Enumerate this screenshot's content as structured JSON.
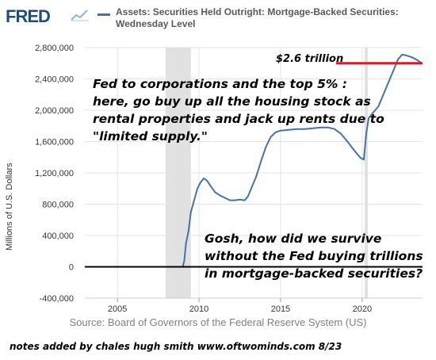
{
  "header": {
    "logo_text": "FRED",
    "series_title_line1": "Assets: Securities Held Outright: Mortgage-Backed Securities:",
    "series_title_line2": "Wednesday Level",
    "accent_color": "#4572a7"
  },
  "chart_data": {
    "type": "line",
    "title": "Assets: Securities Held Outright: Mortgage-Backed Securities: Wednesday Level",
    "ylabel": "Millions of U.S. Dollars",
    "xlabel": "",
    "xlim": [
      2003.0,
      2023.7
    ],
    "ylim": [
      -400000,
      2800000
    ],
    "x_ticks": [
      2005,
      2010,
      2015,
      2020
    ],
    "x_tick_labels": [
      "2005",
      "2010",
      "2015",
      "2020"
    ],
    "y_ticks": [
      -400000,
      0,
      400000,
      800000,
      1200000,
      1600000,
      2000000,
      2400000,
      2800000
    ],
    "y_tick_labels": [
      "-400,000",
      "0",
      "400,000",
      "800,000",
      "1,200,000",
      "1,600,000",
      "2,000,000",
      "2,400,000",
      "2,800,000"
    ],
    "grid": true,
    "recessions": [
      [
        2007.95,
        2009.5
      ],
      [
        2020.15,
        2020.35
      ]
    ],
    "series": [
      {
        "name": "Assets: Securities Held Outright: Mortgage-Backed Securities: Wednesday Level",
        "color": "#4572a7",
        "x": [
          2009.0,
          2009.1,
          2009.2,
          2009.35,
          2009.5,
          2009.7,
          2009.9,
          2010.1,
          2010.3,
          2010.5,
          2010.75,
          2011.0,
          2011.3,
          2011.6,
          2011.9,
          2012.2,
          2012.5,
          2012.8,
          2013.0,
          2013.2,
          2013.5,
          2013.8,
          2014.1,
          2014.4,
          2014.7,
          2015.0,
          2015.5,
          2016.0,
          2016.5,
          2017.0,
          2017.5,
          2017.9,
          2018.3,
          2018.7,
          2019.1,
          2019.5,
          2019.9,
          2020.1,
          2020.25,
          2020.4,
          2020.6,
          2020.8,
          2021.0,
          2021.3,
          2021.6,
          2021.9,
          2022.2,
          2022.45,
          2022.7,
          2023.0,
          2023.3,
          2023.6
        ],
        "y": [
          0,
          80000,
          300000,
          450000,
          700000,
          850000,
          1000000,
          1080000,
          1130000,
          1100000,
          1020000,
          950000,
          910000,
          880000,
          850000,
          850000,
          860000,
          850000,
          900000,
          1000000,
          1150000,
          1350000,
          1530000,
          1660000,
          1720000,
          1740000,
          1750000,
          1760000,
          1760000,
          1770000,
          1780000,
          1780000,
          1760000,
          1700000,
          1600000,
          1490000,
          1390000,
          1370000,
          1700000,
          1900000,
          1950000,
          2000000,
          2050000,
          2200000,
          2350000,
          2500000,
          2650000,
          2710000,
          2700000,
          2680000,
          2650000,
          2610000
        ]
      }
    ],
    "reference_lines": [
      {
        "label": "$2.6 trillion",
        "value": 2600000,
        "color": "#e8141e"
      }
    ],
    "zero_line": {
      "value": 0,
      "color": "#000000"
    }
  },
  "annotations": {
    "trillion_label": "$2.6 trillion",
    "top_text": "Fed to corporations and the top 5% : here, go buy up all the housing stock as rental properties and jack up rents due to \"limited supply.\"",
    "bottom_text": "Gosh, how did we survive without the Fed buying trillions in mortgage-backed securities?"
  },
  "footer": {
    "source": "Source: Board of Governors of the Federal Reserve System (US)",
    "notes": "notes added by chales hugh smith  www.oftwominds.com    8/23"
  }
}
